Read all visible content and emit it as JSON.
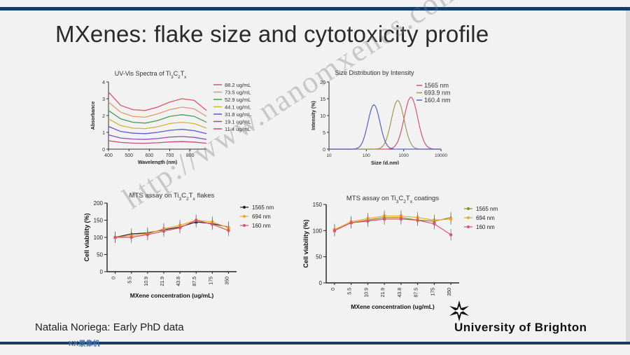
{
  "slide": {
    "title": "MXenes: flake size and cytotoxicity profile",
    "caption": "Natalia Noriega: Early PhD data",
    "brand": "University of Brighton",
    "overlay_small": "KK录像机",
    "overlay_diag": "http://www.nanomxenes.com",
    "colors": {
      "bar": "#1c3a66",
      "text": "#222222"
    }
  },
  "chart_data": [
    {
      "type": "line",
      "title": "UV-Vis Spectra of Ti3C2Tx",
      "xlabel": "Wavelength (nm)",
      "ylabel": "Absorbance",
      "xlim": [
        400,
        880
      ],
      "ylim": [
        0,
        4
      ],
      "xticks": [
        "400",
        "500",
        "600",
        "700",
        "800"
      ],
      "yticks": [
        "0",
        "1",
        "2",
        "3",
        "4"
      ],
      "legend_position": "right",
      "series": [
        {
          "name": "88.2 ug/mL",
          "color": "#d9546f",
          "values": [
            3.4,
            2.6,
            2.35,
            2.3,
            2.5,
            2.8,
            3.0,
            2.9,
            2.3
          ]
        },
        {
          "name": "73.5 ug/mL",
          "color": "#e39a6a",
          "values": [
            2.8,
            2.2,
            1.95,
            1.9,
            2.1,
            2.35,
            2.5,
            2.4,
            1.95
          ]
        },
        {
          "name": "52.9 ug/mL",
          "color": "#4c9a55",
          "values": [
            2.3,
            1.8,
            1.6,
            1.55,
            1.7,
            1.95,
            2.05,
            1.95,
            1.6
          ]
        },
        {
          "name": "44.1 ug/mL",
          "color": "#d7b32f",
          "values": [
            1.8,
            1.4,
            1.25,
            1.22,
            1.33,
            1.52,
            1.6,
            1.52,
            1.25
          ]
        },
        {
          "name": "31.8 ug/mL",
          "color": "#5b58c9",
          "values": [
            1.35,
            1.05,
            0.95,
            0.92,
            1.0,
            1.12,
            1.18,
            1.1,
            0.92
          ]
        },
        {
          "name": "19.1 ug/mL",
          "color": "#8a4fb6",
          "values": [
            0.85,
            0.66,
            0.6,
            0.58,
            0.63,
            0.72,
            0.75,
            0.7,
            0.58
          ]
        },
        {
          "name": "11.4 ug/mL",
          "color": "#c84c7a",
          "values": [
            0.5,
            0.4,
            0.36,
            0.35,
            0.38,
            0.43,
            0.45,
            0.42,
            0.35
          ]
        }
      ],
      "x": [
        400,
        460,
        520,
        580,
        640,
        700,
        760,
        820,
        880
      ]
    },
    {
      "type": "line",
      "title": "Size Distribution by Intensity",
      "xlabel": "Size (d.nm)",
      "ylabel": "Intensity (%)",
      "xscale": "log",
      "xlim": [
        10,
        10000
      ],
      "ylim": [
        0,
        20
      ],
      "xticks": [
        "10",
        "100",
        "1000",
        "10000"
      ],
      "yticks": [
        "0",
        "5",
        "10",
        "15",
        "20"
      ],
      "legend_position": "top-right",
      "series": [
        {
          "name": "1565 nm",
          "color": "#d9546f",
          "peak": 1565,
          "height": 15.5,
          "width": 0.18
        },
        {
          "name": "693.9 nm",
          "color": "#9a9a55",
          "peak": 694,
          "height": 14.5,
          "width": 0.17
        },
        {
          "name": "160.4 nm",
          "color": "#5563c9",
          "peak": 160,
          "height": 13.2,
          "width": 0.16
        }
      ]
    },
    {
      "type": "line",
      "title": "MTS assay on Ti3C2Tx flakes",
      "xlabel": "MXene concentration (ug/mL)",
      "ylabel": "Cell viability (%)",
      "ylim": [
        0,
        200
      ],
      "yticks": [
        "0",
        "50",
        "100",
        "150",
        "200"
      ],
      "categories": [
        "0",
        "5.5",
        "10.9",
        "21.9",
        "43.8",
        "87.5",
        "175",
        "350"
      ],
      "legend_position": "right",
      "series": [
        {
          "name": "1565 nm",
          "color": "#222222",
          "values": [
            100,
            110,
            113,
            122,
            130,
            145,
            140,
            130
          ]
        },
        {
          "name": "694 nm",
          "color": "#f5a623",
          "values": [
            100,
            105,
            110,
            125,
            135,
            150,
            145,
            128
          ]
        },
        {
          "name": "160 nm",
          "color": "#d9546f",
          "values": [
            100,
            100,
            108,
            118,
            128,
            150,
            138,
            120
          ]
        }
      ]
    },
    {
      "type": "line",
      "title": "MTS assay on Ti3C2Tx coatings",
      "xlabel": "MXene concentration (ug/mL)",
      "ylabel": "Cell viability (%)",
      "ylim": [
        0,
        150
      ],
      "yticks": [
        "0",
        "50",
        "100",
        "150"
      ],
      "categories": [
        "0",
        "5.5",
        "10.9",
        "21.9",
        "43.8",
        "87.5",
        "175",
        "350"
      ],
      "legend_position": "right",
      "series": [
        {
          "name": "1565 nm",
          "color": "#8a8a2a",
          "values": [
            100,
            115,
            120,
            125,
            125,
            120,
            118,
            125
          ]
        },
        {
          "name": "694 nm",
          "color": "#f5a623",
          "values": [
            102,
            117,
            123,
            128,
            128,
            125,
            120,
            122
          ]
        },
        {
          "name": "160 nm",
          "color": "#d9546f",
          "values": [
            100,
            115,
            118,
            122,
            122,
            120,
            113,
            92
          ]
        }
      ]
    }
  ]
}
